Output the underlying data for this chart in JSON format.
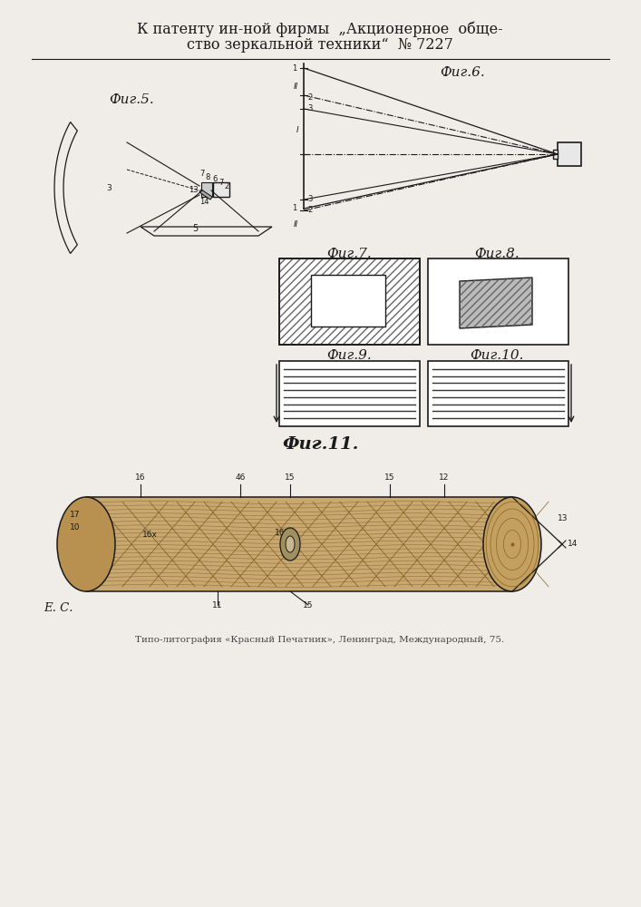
{
  "title_line1": "К патенту ин-ной фирмы  „Акционерное  обще-",
  "title_line2": "ство зеркальной техники“  № 7227",
  "fig5_label": "Фиг.5.",
  "fig6_label": "Фиг.6.",
  "fig7_label": "Фиг.7.",
  "fig8_label": "Фиг.8.",
  "fig9_label": "Фиг.9.",
  "fig10_label": "Фиг.10.",
  "fig11_label": "Фиг.11.",
  "footer_ec": "Е. С.",
  "footer_print": "Типо-литография «Красный Печатник», Ленинград, Международный, 75.",
  "bg_color": "#f0ede8",
  "line_color": "#1a1a1a",
  "wood_light": "#c8a870",
  "wood_dark": "#8b6520",
  "wood_grain": "#7a5a18"
}
